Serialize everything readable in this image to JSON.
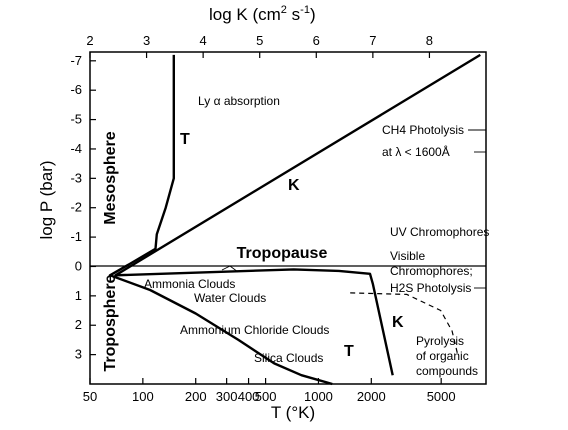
{
  "chart_data": {
    "type": "line",
    "top_axis": {
      "label": "log  K (cm² s⁻¹)",
      "label_main": "log  K (cm",
      "label_sup1": "2",
      "label_mid": " s",
      "label_sup2": "-1",
      "label_end": ")",
      "ticks": [
        "2",
        "3",
        "4",
        "5",
        "6",
        "7",
        "8"
      ],
      "range": [
        2,
        9
      ]
    },
    "left_axis": {
      "label": "log P (bar)",
      "ticks": [
        "-7",
        "-6",
        "-5",
        "-4",
        "-3",
        "-2",
        "-1",
        "0",
        "1",
        "2",
        "3"
      ],
      "range": [
        -7.3,
        4
      ]
    },
    "bottom_axis": {
      "label": "T (°K)",
      "scale": "log",
      "ticks": [
        "50",
        "100",
        "200",
        "300",
        "400",
        "500",
        "1000",
        "2000",
        "5000"
      ],
      "range": [
        50,
        9000
      ]
    },
    "regions": {
      "upper": "Mesosphere",
      "lower": "Troposphere",
      "boundary": "Tropopause"
    },
    "annotations": {
      "ly_alpha": "Ly α absorption",
      "ch4_line1": "CH4 Photolysis",
      "ch4_line2": "at λ < 1600Å",
      "uv": "UV Chromophores",
      "visible": "Visible",
      "chromophores": "Chromophores;",
      "h2s": "H2S Photolysis",
      "ammonia": "Ammonia Clouds",
      "water": "Water Clouds",
      "ammonium": "Ammonium Chloride Clouds",
      "silica": "Silica Clouds",
      "pyrolysis_1": "Pyrolysis",
      "pyrolysis_2": "of organic",
      "pyrolysis_3": "compounds"
    },
    "series": [
      {
        "name": "T",
        "axis": "bottom",
        "points": [
          [
            150,
            -7.2
          ],
          [
            150,
            -3.0
          ],
          [
            135,
            -2.0
          ],
          [
            120,
            -1.1
          ],
          [
            118,
            -0.6
          ],
          [
            85,
            -0.1
          ],
          [
            65,
            0.3
          ],
          [
            110,
            0.8
          ],
          [
            200,
            1.6
          ],
          [
            350,
            2.5
          ],
          [
            560,
            3.3
          ],
          [
            800,
            3.7
          ],
          [
            1200,
            4.0
          ]
        ]
      },
      {
        "name": "K",
        "axis": "top",
        "points": [
          [
            8.9,
            -7.2
          ],
          [
            2.45,
            0.3
          ],
          [
            5.6,
            0.1
          ],
          [
            6.4,
            0.15
          ],
          [
            6.95,
            0.25
          ],
          [
            7.0,
            0.6
          ],
          [
            7.35,
            3.7
          ]
        ]
      },
      {
        "name": "K (pyrolysis, dashed)",
        "axis": "top",
        "points": [
          [
            6.6,
            0.9
          ],
          [
            7.6,
            0.95
          ],
          [
            8.2,
            1.5
          ],
          [
            8.4,
            2.2
          ],
          [
            8.5,
            3.0
          ]
        ]
      }
    ],
    "line_labels": {
      "T_upper": "T",
      "T_lower": "T",
      "K_upper": "K",
      "K_lower": "K"
    },
    "grid": false,
    "legend": "none"
  }
}
